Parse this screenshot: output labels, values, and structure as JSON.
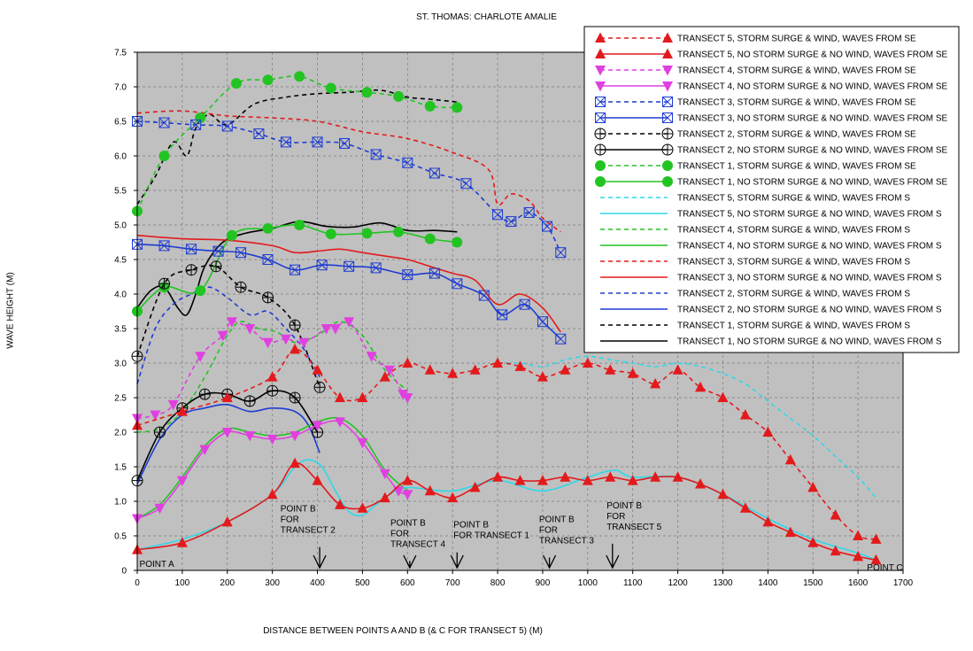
{
  "chart_data": {
    "type": "line",
    "title": "ST. THOMAS: CHARLOTE AMALIE",
    "xlabel": "DISTANCE BETWEEN POINTS A AND B (& C FOR TRANSECT 5) (M)",
    "ylabel": "WAVE HEIGHT  (M)",
    "xlim": [
      0,
      1700
    ],
    "ylim": [
      0,
      7.5
    ],
    "xticks": [
      "0",
      "100",
      "200",
      "300",
      "400",
      "500",
      "600",
      "700",
      "800",
      "900",
      "1000",
      "1100",
      "1200",
      "1300",
      "1400",
      "1500",
      "1600",
      "1700"
    ],
    "yticks": [
      "0",
      "0.5",
      "1.0",
      "1.5",
      "2.0",
      "2.5",
      "3.0",
      "3.5",
      "4.0",
      "4.5",
      "5.0",
      "5.5",
      "6.0",
      "6.5",
      "7.0",
      "7.5"
    ],
    "grid": true,
    "legend_position": "top-right",
    "series": [
      {
        "name": "TRANSECT 5, STORM SURGE & WIND, WAVES FROM SE",
        "color": "#e31a1c",
        "dash": "dashed",
        "marker": "triangle-up",
        "x": [
          0,
          100,
          200,
          300,
          350,
          400,
          450,
          500,
          550,
          600,
          650,
          700,
          750,
          800,
          850,
          900,
          950,
          1000,
          1050,
          1100,
          1150,
          1200,
          1250,
          1300,
          1350,
          1400,
          1450,
          1500,
          1550,
          1600,
          1640
        ],
        "y": [
          2.1,
          2.3,
          2.5,
          2.8,
          3.2,
          2.9,
          2.5,
          2.5,
          2.8,
          3.0,
          2.9,
          2.85,
          2.9,
          3.0,
          2.95,
          2.8,
          2.9,
          3.0,
          2.9,
          2.85,
          2.7,
          2.9,
          2.65,
          2.5,
          2.25,
          2.0,
          1.6,
          1.2,
          0.8,
          0.5,
          0.45
        ]
      },
      {
        "name": "TRANSECT 5, NO STORM SURGE & NO WIND, WAVES FROM SE",
        "color": "#e31a1c",
        "dash": "solid",
        "marker": "triangle-up",
        "x": [
          0,
          100,
          200,
          300,
          350,
          400,
          450,
          500,
          550,
          600,
          650,
          700,
          750,
          800,
          850,
          900,
          950,
          1000,
          1050,
          1100,
          1150,
          1200,
          1250,
          1300,
          1350,
          1400,
          1450,
          1500,
          1550,
          1600,
          1640
        ],
        "y": [
          0.3,
          0.4,
          0.7,
          1.1,
          1.55,
          1.3,
          0.95,
          0.9,
          1.05,
          1.3,
          1.15,
          1.05,
          1.2,
          1.35,
          1.3,
          1.3,
          1.35,
          1.3,
          1.35,
          1.3,
          1.35,
          1.35,
          1.25,
          1.1,
          0.9,
          0.7,
          0.55,
          0.4,
          0.28,
          0.2,
          0.15
        ]
      },
      {
        "name": "TRANSECT 4, STORM SURGE & WIND, WAVES FROM SE",
        "color": "#e040e0",
        "dash": "dashed",
        "marker": "triangle-down",
        "x": [
          0,
          40,
          80,
          140,
          190,
          210,
          250,
          290,
          330,
          370,
          420,
          440,
          470,
          520,
          560,
          590,
          600
        ],
        "y": [
          2.2,
          2.25,
          2.4,
          3.1,
          3.4,
          3.6,
          3.5,
          3.3,
          3.35,
          3.3,
          3.5,
          3.5,
          3.6,
          3.1,
          2.9,
          2.55,
          2.5
        ]
      },
      {
        "name": "TRANSECT 4, NO STORM SURGE & NO WIND, WAVES FROM SE",
        "color": "#e040e0",
        "dash": "solid",
        "marker": "triangle-down",
        "x": [
          0,
          50,
          100,
          150,
          200,
          250,
          300,
          350,
          400,
          450,
          500,
          550,
          580,
          600
        ],
        "y": [
          0.75,
          0.9,
          1.3,
          1.75,
          2.0,
          1.95,
          1.9,
          1.95,
          2.1,
          2.15,
          1.85,
          1.4,
          1.15,
          1.1
        ]
      },
      {
        "name": "TRANSECT 3, STORM SURGE & WIND, WAVES FROM SE",
        "color": "#1e3cd2",
        "dash": "dashed",
        "marker": "boxed-x",
        "x": [
          0,
          60,
          130,
          200,
          270,
          330,
          400,
          460,
          530,
          600,
          660,
          730,
          800,
          830,
          870,
          910,
          940
        ],
        "y": [
          6.5,
          6.48,
          6.45,
          6.43,
          6.32,
          6.2,
          6.2,
          6.18,
          6.02,
          5.9,
          5.75,
          5.6,
          5.15,
          5.05,
          5.18,
          4.98,
          4.6
        ]
      },
      {
        "name": "TRANSECT 3, NO STORM SURGE & NO WIND. WAVES FROM SE",
        "color": "#1e3cd2",
        "dash": "solid",
        "marker": "boxed-x",
        "x": [
          0,
          60,
          120,
          180,
          230,
          290,
          350,
          410,
          470,
          530,
          600,
          660,
          710,
          770,
          810,
          860,
          900,
          940
        ],
        "y": [
          4.72,
          4.7,
          4.65,
          4.62,
          4.6,
          4.5,
          4.35,
          4.42,
          4.4,
          4.38,
          4.28,
          4.3,
          4.15,
          3.98,
          3.7,
          3.85,
          3.6,
          3.35
        ]
      },
      {
        "name": "TRANSECT 2, STORM SURGE & WIND, WAVES FROM SE",
        "color": "#000000",
        "dash": "dashed",
        "marker": "circle-plus",
        "x": [
          0,
          60,
          120,
          175,
          230,
          290,
          350,
          405
        ],
        "y": [
          3.1,
          4.15,
          4.35,
          4.4,
          4.1,
          3.95,
          3.55,
          2.65
        ]
      },
      {
        "name": "TRANSECT 2, NO STORM SURGE & NO WIND, WAVES FROM SE",
        "color": "#000000",
        "dash": "solid",
        "marker": "circle-plus",
        "x": [
          0,
          50,
          100,
          150,
          200,
          250,
          300,
          350,
          400
        ],
        "y": [
          1.3,
          2.0,
          2.35,
          2.55,
          2.55,
          2.45,
          2.6,
          2.5,
          2.0
        ]
      },
      {
        "name": "TRANSECT 1, STORM SURGE & WIND, WAVES FROM SE",
        "color": "#22c422",
        "dash": "dashed",
        "marker": "filled-circle",
        "x": [
          0,
          60,
          140,
          220,
          290,
          360,
          430,
          510,
          580,
          650,
          710
        ],
        "y": [
          5.2,
          6.0,
          6.55,
          7.05,
          7.1,
          7.15,
          6.98,
          6.92,
          6.86,
          6.72,
          6.7
        ]
      },
      {
        "name": "TRANSECT 1, NO STORM SURGE & NO WIND, WAVES FROM SE",
        "color": "#22c422",
        "dash": "solid",
        "marker": "filled-circle",
        "x": [
          0,
          60,
          140,
          210,
          290,
          360,
          430,
          510,
          580,
          650,
          710
        ],
        "y": [
          3.75,
          4.1,
          4.05,
          4.85,
          4.95,
          5.0,
          4.87,
          4.88,
          4.9,
          4.8,
          4.75
        ]
      },
      {
        "name": "TRANSECT 5, STORM SURGE & WIND, WAVES FROM S",
        "color": "#2ed8e8",
        "dash": "dashed",
        "marker": "none",
        "x": [
          800,
          850,
          900,
          950,
          1000,
          1050,
          1100,
          1150,
          1200,
          1250,
          1300,
          1350,
          1400,
          1450,
          1500,
          1550,
          1600,
          1640
        ],
        "y": [
          3.0,
          3.0,
          2.95,
          3.05,
          3.1,
          3.05,
          3.0,
          2.95,
          3.0,
          2.95,
          2.85,
          2.7,
          2.45,
          2.2,
          1.95,
          1.65,
          1.35,
          1.05
        ]
      },
      {
        "name": "TRANSECT 5, NO STORM SURGE & NO WIND, WAVES FROM S",
        "color": "#2ed8e8",
        "dash": "solid",
        "marker": "none",
        "x": [
          0,
          100,
          200,
          300,
          350,
          380,
          410,
          440,
          470,
          500,
          530,
          560,
          600,
          700,
          800,
          900,
          1000,
          1060,
          1100,
          1200,
          1300,
          1400,
          1500,
          1600,
          1640
        ],
        "y": [
          0.3,
          0.45,
          0.7,
          1.1,
          1.5,
          1.6,
          1.5,
          1.15,
          0.85,
          0.8,
          0.95,
          1.1,
          1.2,
          1.15,
          1.3,
          1.15,
          1.35,
          1.45,
          1.35,
          1.35,
          1.1,
          0.75,
          0.45,
          0.25,
          0.15
        ]
      },
      {
        "name": "TRANSECT 4, STORM SURGE & WIND, WAVES FROM S",
        "color": "#22c422",
        "dash": "dashed",
        "marker": "none",
        "x": [
          0,
          50,
          100,
          150,
          200,
          230,
          270,
          310,
          350,
          400,
          450,
          500,
          550,
          600
        ],
        "y": [
          2.0,
          2.05,
          2.3,
          2.8,
          3.4,
          3.6,
          3.5,
          3.45,
          3.3,
          3.4,
          3.6,
          3.4,
          2.9,
          2.6
        ]
      },
      {
        "name": "TRANSECT 4, NO STORM SURGE & NO WIND, WAVES FROM S",
        "color": "#22c422",
        "dash": "solid",
        "marker": "none",
        "x": [
          0,
          50,
          100,
          150,
          200,
          250,
          300,
          350,
          400,
          450,
          500,
          550,
          600
        ],
        "y": [
          0.75,
          0.95,
          1.35,
          1.8,
          2.05,
          2.0,
          1.95,
          2.0,
          2.15,
          2.2,
          1.95,
          1.45,
          1.15
        ]
      },
      {
        "name": "TRANSECT 3, STORM SURGE & WIND, WAVES FROM S",
        "color": "#e31a1c",
        "dash": "dashed",
        "marker": "none",
        "x": [
          0,
          100,
          200,
          300,
          400,
          500,
          600,
          700,
          780,
          800,
          830,
          870,
          900,
          940
        ],
        "y": [
          6.62,
          6.65,
          6.58,
          6.55,
          6.5,
          6.35,
          6.25,
          6.05,
          5.8,
          5.3,
          5.45,
          5.35,
          5.1,
          4.9
        ]
      },
      {
        "name": "TRANSECT 3, NO STORM SURGE & NO WIND, WAVES FROM S",
        "color": "#e31a1c",
        "dash": "solid",
        "marker": "none",
        "x": [
          0,
          100,
          200,
          300,
          350,
          400,
          450,
          500,
          550,
          600,
          650,
          700,
          750,
          800,
          850,
          900,
          940
        ],
        "y": [
          4.85,
          4.8,
          4.78,
          4.7,
          4.6,
          4.62,
          4.65,
          4.6,
          4.55,
          4.5,
          4.4,
          4.3,
          4.2,
          3.85,
          4.0,
          3.8,
          3.45
        ]
      },
      {
        "name": "TRANSECT 2, STORM SURGE & WIND, WAVES FROM S",
        "color": "#1e3cd2",
        "dash": "dashed",
        "marker": "none",
        "x": [
          0,
          40,
          80,
          120,
          160,
          200,
          250,
          290,
          330,
          370,
          405
        ],
        "y": [
          2.7,
          3.5,
          3.85,
          4.0,
          4.1,
          3.95,
          3.7,
          3.75,
          3.5,
          3.2,
          2.8
        ]
      },
      {
        "name": "TRANSECT 2, NO STORM SURGE & NO WIND, WAVES FROM S",
        "color": "#1e3cd2",
        "dash": "solid",
        "marker": "none",
        "x": [
          0,
          50,
          100,
          150,
          200,
          250,
          300,
          350,
          380,
          405
        ],
        "y": [
          1.25,
          1.9,
          2.25,
          2.35,
          2.4,
          2.3,
          2.35,
          2.3,
          2.1,
          1.7
        ]
      },
      {
        "name": "TRANSECT 1, STORM SURGE & WIND, WAVES FROM S",
        "color": "#000000",
        "dash": "dashed",
        "marker": "none",
        "x": [
          0,
          40,
          80,
          110,
          130,
          160,
          200,
          260,
          330,
          400,
          470,
          540,
          600,
          650,
          710
        ],
        "y": [
          5.3,
          5.7,
          6.2,
          6.0,
          6.4,
          6.6,
          6.45,
          6.75,
          6.85,
          6.9,
          6.92,
          6.95,
          6.85,
          6.82,
          6.78
        ]
      },
      {
        "name": "TRANSECT 1, NO STORM SURGE & NO WIND, WAVES FROM S",
        "color": "#000000",
        "dash": "solid",
        "marker": "none",
        "x": [
          0,
          30,
          60,
          90,
          110,
          130,
          150,
          190,
          240,
          300,
          360,
          420,
          480,
          540,
          600,
          660,
          710
        ],
        "y": [
          3.8,
          4.05,
          4.1,
          3.8,
          3.7,
          4.0,
          4.4,
          4.75,
          4.88,
          4.95,
          5.05,
          4.98,
          4.97,
          5.03,
          4.92,
          4.92,
          4.9
        ]
      }
    ],
    "annotations": [
      {
        "text": [
          "POINT A"
        ],
        "x": 5,
        "y": 0.05
      },
      {
        "text": [
          "POINT B",
          "FOR",
          "TRANSECT 2"
        ],
        "x": 318,
        "y": 0.85,
        "arrow_x": 405
      },
      {
        "text": [
          "POINT B",
          "FOR",
          "TRANSECT 4"
        ],
        "x": 562,
        "y": 0.65,
        "arrow_x": 605
      },
      {
        "text": [
          "POINT B",
          "FOR TRANSECT 1"
        ],
        "x": 702,
        "y": 0.62,
        "arrow_x": 710
      },
      {
        "text": [
          "POINT B",
          "FOR",
          "TRANSECT 3"
        ],
        "x": 892,
        "y": 0.7,
        "arrow_x": 915
      },
      {
        "text": [
          "POINT B",
          "FOR",
          "TRANSECT 5"
        ],
        "x": 1042,
        "y": 0.9,
        "arrow_x": 1055
      },
      {
        "text": [
          "POINT C"
        ],
        "x": 1620,
        "y": 0.0
      }
    ]
  }
}
